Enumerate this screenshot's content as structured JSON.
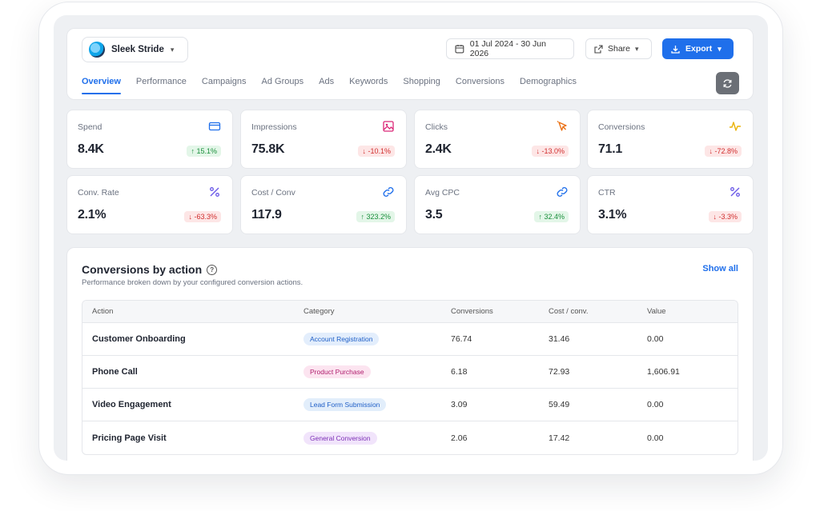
{
  "workspace": {
    "name": "Sleek Stride"
  },
  "header": {
    "date_range": "01 Jul 2024 - 30 Jun 2026",
    "share_label": "Share",
    "export_label": "Export"
  },
  "tabs": [
    {
      "label": "Overview",
      "active": true
    },
    {
      "label": "Performance"
    },
    {
      "label": "Campaigns"
    },
    {
      "label": "Ad Groups"
    },
    {
      "label": "Ads"
    },
    {
      "label": "Keywords"
    },
    {
      "label": "Shopping"
    },
    {
      "label": "Conversions"
    },
    {
      "label": "Demographics"
    }
  ],
  "kpis": [
    {
      "label": "Spend",
      "value": "8.4K",
      "change": "↑ 15.1%",
      "direction": "up",
      "icon": "credit-card-icon",
      "icon_color": "#1f6feb"
    },
    {
      "label": "Impressions",
      "value": "75.8K",
      "change": "↓ -10.1%",
      "direction": "down",
      "icon": "image-icon",
      "icon_color": "#db2777"
    },
    {
      "label": "Clicks",
      "value": "2.4K",
      "change": "↓ -13.0%",
      "direction": "down",
      "icon": "cursor-click-icon",
      "icon_color": "#ea6c0c"
    },
    {
      "label": "Conversions",
      "value": "71.1",
      "change": "↓ -72.8%",
      "direction": "down",
      "icon": "activity-icon",
      "icon_color": "#eab308"
    },
    {
      "label": "Conv. Rate",
      "value": "2.1%",
      "change": "↓ -63.3%",
      "direction": "down",
      "icon": "percent-icon",
      "icon_color": "#6d5ce8"
    },
    {
      "label": "Cost / Conv",
      "value": "117.9",
      "change": "↑ 323.2%",
      "direction": "up",
      "icon": "link-icon",
      "icon_color": "#1f6feb"
    },
    {
      "label": "Avg CPC",
      "value": "3.5",
      "change": "↑ 32.4%",
      "direction": "up",
      "icon": "link-icon",
      "icon_color": "#1f6feb"
    },
    {
      "label": "CTR",
      "value": "3.1%",
      "change": "↓ -3.3%",
      "direction": "down",
      "icon": "percent-icon",
      "icon_color": "#6d5ce8"
    }
  ],
  "conversions_panel": {
    "title": "Conversions by action",
    "subtitle": "Performance broken down by your configured conversion actions.",
    "show_all": "Show all",
    "columns": [
      "Action",
      "Category",
      "Conversions",
      "Cost / conv.",
      "Value"
    ],
    "rows": [
      {
        "action": "Customer Onboarding",
        "category": "Account Registration",
        "category_bg": "#e3eefc",
        "category_fg": "#1f5fc7",
        "conversions": "76.74",
        "cost": "31.46",
        "value": "0.00"
      },
      {
        "action": "Phone Call",
        "category": "Product Purchase",
        "category_bg": "#fce4f0",
        "category_fg": "#b0206f",
        "conversions": "6.18",
        "cost": "72.93",
        "value": "1,606.91"
      },
      {
        "action": "Video Engagement",
        "category": "Lead Form Submission",
        "category_bg": "#e2eefb",
        "category_fg": "#1f5fc7",
        "conversions": "3.09",
        "cost": "59.49",
        "value": "0.00"
      },
      {
        "action": "Pricing Page Visit",
        "category": "General Conversion",
        "category_bg": "#f1e4fb",
        "category_fg": "#7c2fb6",
        "conversions": "2.06",
        "cost": "17.42",
        "value": "0.00"
      }
    ]
  }
}
